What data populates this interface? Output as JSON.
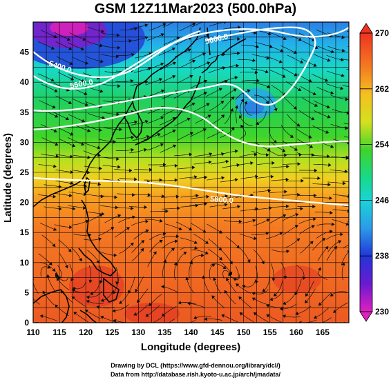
{
  "title": "GSM 12Z11Mar2023 (500.0hPa)",
  "axes": {
    "xlabel": "Longitude (degrees)",
    "ylabel": "Latitude  (degrees)",
    "xticks": [
      110,
      115,
      120,
      125,
      130,
      135,
      140,
      145,
      150,
      155,
      160,
      165
    ],
    "yticks": [
      0,
      5,
      10,
      15,
      20,
      25,
      30,
      35,
      40,
      45
    ],
    "xrange": [
      110,
      170
    ],
    "yrange": [
      0,
      50
    ]
  },
  "colorbar": {
    "ticks": [
      "270",
      "262",
      "254",
      "246",
      "238",
      "230"
    ],
    "range": [
      230,
      270
    ]
  },
  "contours": [
    {
      "label": "5400.0"
    },
    {
      "label": "5500.0"
    },
    {
      "label": "5600.0"
    },
    {
      "label": "5800.0"
    }
  ],
  "credits": {
    "line1": "Drawing by DCL (https://www.gfd-dennou.org/library/dcl/)",
    "line2": "Data from http://database.rish.kyoto-u.ac.jp/arch/jmadata/"
  }
}
